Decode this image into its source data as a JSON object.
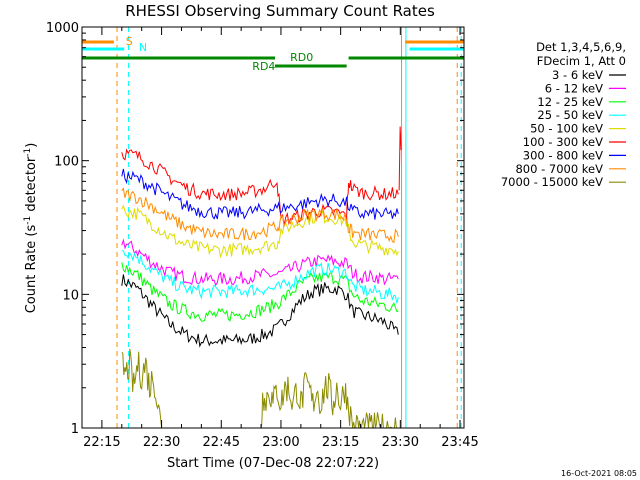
{
  "chart_data": {
    "type": "line",
    "title": "RHESSI Observing Summary Count Rates",
    "xlabel": "Start Time (07-Dec-08 22:07:22)",
    "ylabel_main": "Count Rate (s",
    "ylabel_sup1": "-1",
    "ylabel_mid": " detector",
    "ylabel_sup2": "-1",
    "ylabel_end": ")",
    "yscale": "log",
    "xlim": [
      10.0,
      106.0
    ],
    "ylim": [
      1,
      1000
    ],
    "x_ticks": [
      {
        "value": 15,
        "label": "22:15"
      },
      {
        "value": 30,
        "label": "22:30"
      },
      {
        "value": 45,
        "label": "22:45"
      },
      {
        "value": 60,
        "label": "23:00"
      },
      {
        "value": 75,
        "label": "23:15"
      },
      {
        "value": 90,
        "label": "23:30"
      },
      {
        "value": 105,
        "label": "23:45"
      }
    ],
    "y_ticks": [
      {
        "value": 1,
        "label": "1"
      },
      {
        "value": 10,
        "label": "10"
      },
      {
        "value": 100,
        "label": "100"
      },
      {
        "value": 1000,
        "label": "1000"
      }
    ],
    "legend_header": [
      "Det 1,3,4,5,6,9,",
      "FDecim 1, Att 0"
    ],
    "series": [
      {
        "name": "3 - 6 keV",
        "color": "#000000",
        "x": [
          20,
          24,
          28,
          32,
          36,
          40,
          44,
          48,
          52,
          56,
          59,
          62,
          65,
          68,
          71,
          74,
          76.5,
          78,
          80,
          82,
          84,
          86,
          88,
          89.5
        ],
        "y": [
          13,
          11,
          8,
          6,
          5,
          4.5,
          4.5,
          4.5,
          4.6,
          5,
          5.5,
          7,
          9,
          10.5,
          11,
          11,
          10,
          7.5,
          7,
          6.8,
          6.5,
          6.2,
          5.5,
          5
        ]
      },
      {
        "name": "6 - 12 keV",
        "color": "#ff00ff",
        "x": [
          20,
          24,
          28,
          32,
          36,
          40,
          44,
          48,
          52,
          56,
          59,
          62,
          65,
          68,
          71,
          74,
          76.5,
          78,
          80,
          82,
          84,
          86,
          88,
          89.5
        ],
        "y": [
          25,
          21,
          17,
          14.5,
          13.5,
          13,
          13,
          13,
          13.5,
          14,
          14,
          15,
          16.5,
          17.5,
          18,
          17.5,
          17,
          14.5,
          13.5,
          13.5,
          13.5,
          13,
          13,
          13
        ]
      },
      {
        "name": "12 - 25 keV",
        "color": "#00ff00",
        "x": [
          20,
          24,
          28,
          32,
          36,
          40,
          44,
          48,
          52,
          56,
          59,
          62,
          65,
          68,
          71,
          74,
          76.5,
          78,
          80,
          82,
          84,
          86,
          88,
          89.5
        ],
        "y": [
          17,
          14,
          10.5,
          8.5,
          7.5,
          7,
          7,
          7,
          7.3,
          7.8,
          8.5,
          10,
          12,
          13,
          13.5,
          13.3,
          12.5,
          10,
          9,
          8.8,
          8.5,
          8.3,
          8,
          7.5
        ]
      },
      {
        "name": "25 - 50 keV",
        "color": "#00ffff",
        "x": [
          20,
          24,
          28,
          32,
          36,
          40,
          44,
          48,
          52,
          56,
          59,
          62,
          65,
          68,
          71,
          74,
          76.5,
          78,
          80,
          82,
          84,
          86,
          88,
          89.5
        ],
        "y": [
          22,
          19,
          15,
          12.5,
          11,
          10.5,
          10.5,
          10.5,
          10.8,
          11,
          11,
          12,
          13.5,
          15,
          15.5,
          15,
          14.5,
          11.5,
          11,
          10.5,
          10.5,
          10,
          10,
          9.5
        ]
      },
      {
        "name": "50 - 100 keV",
        "color": "#dddd00",
        "x": [
          20,
          24,
          28,
          32,
          36,
          40,
          44,
          48,
          52,
          56,
          59,
          60,
          62,
          65,
          68,
          71,
          74,
          76.5,
          77,
          78,
          80,
          82,
          84,
          86,
          88,
          89.5
        ],
        "y": [
          43,
          40,
          33,
          27,
          23.5,
          22,
          21.5,
          21.5,
          22,
          23,
          24,
          30,
          32,
          35,
          37.5,
          38,
          37,
          35,
          30,
          25,
          23.5,
          23,
          22.5,
          22,
          22,
          21
        ]
      },
      {
        "name": "100 - 300 keV",
        "color": "#ff0000",
        "x": [
          20,
          24,
          28,
          32,
          36,
          40,
          44,
          48,
          52,
          56,
          59,
          60,
          62,
          65,
          68,
          71,
          74,
          76.5,
          77,
          78,
          80,
          82,
          84,
          86,
          88,
          89.5
        ],
        "y": [
          115,
          108,
          92,
          75,
          63,
          57,
          56,
          56,
          58,
          62,
          72,
          36,
          37,
          39,
          41.5,
          42,
          41,
          39,
          70,
          62,
          58,
          57,
          57,
          56,
          57,
          56
        ]
      },
      {
        "name": "300 - 800 keV",
        "color": "#0000ff",
        "x": [
          20,
          24,
          28,
          32,
          36,
          40,
          44,
          48,
          52,
          56,
          59,
          62,
          65,
          68,
          71,
          74,
          76.5,
          78,
          80,
          82,
          84,
          86,
          88,
          89.5
        ],
        "y": [
          78,
          73,
          63,
          53,
          46,
          42,
          40.5,
          40.5,
          41.5,
          43,
          44,
          45,
          47,
          49.5,
          51,
          50.5,
          48,
          42,
          40,
          40,
          40,
          39.5,
          39.5,
          40
        ]
      },
      {
        "name": "800 - 7000 keV",
        "color": "#ff8c00",
        "x": [
          20,
          24,
          28,
          32,
          36,
          40,
          44,
          48,
          52,
          56,
          59,
          60,
          62,
          65,
          68,
          71,
          74,
          76.5,
          77,
          78,
          80,
          82,
          84,
          86,
          88,
          89.5
        ],
        "y": [
          57,
          53,
          45,
          37,
          32,
          29,
          28,
          28,
          28.5,
          30,
          32,
          34,
          36,
          38,
          40,
          40.5,
          39.5,
          37,
          31,
          29,
          28,
          28,
          27.5,
          27.5,
          27.5,
          27
        ]
      },
      {
        "name": "7000 - 15000 keV",
        "color": "#8b8b00",
        "x": [
          20,
          21,
          22,
          23,
          24,
          25,
          26,
          27,
          28,
          29,
          30,
          55,
          55.5,
          56,
          57,
          58,
          59,
          60,
          61,
          62,
          63,
          64,
          65,
          66,
          67,
          68,
          69,
          70,
          71,
          72,
          73,
          74,
          75,
          76,
          77,
          78,
          79,
          80,
          81,
          82,
          83,
          84,
          85,
          86,
          87,
          88,
          89
        ],
        "y": [
          3,
          2.5,
          3,
          2,
          3,
          2.5,
          3,
          2,
          2.5,
          1.5,
          1,
          1,
          2,
          1.5,
          2,
          1.5,
          2,
          1.5,
          2,
          2,
          1.5,
          2,
          1.5,
          2,
          2,
          1.5,
          2,
          1.5,
          2,
          2,
          1.5,
          2,
          1.5,
          2,
          1.5,
          1,
          1,
          1,
          1,
          1,
          1,
          1,
          1,
          1,
          1,
          1,
          1
        ]
      }
    ],
    "attenuator_bars": [
      {
        "label": "S",
        "color": "#ff8c00"
      },
      {
        "label": "N",
        "color": "#00ffff"
      }
    ],
    "rd_labels": [
      {
        "label": "RD0",
        "color": "#008800"
      },
      {
        "label": "RD4",
        "color": "#008800"
      }
    ],
    "vertical_markers": [
      {
        "x": 18.8,
        "color": "#ff8c00",
        "style": "dashed"
      },
      {
        "x": 21.7,
        "color": "#00ffff",
        "style": "dashed"
      },
      {
        "x": 90.3,
        "color": "#ff8c00",
        "style": "solid"
      },
      {
        "x": 91.4,
        "color": "#00ffff",
        "style": "solid"
      },
      {
        "x": 104.3,
        "color": "#ff8c00",
        "style": "dashed"
      },
      {
        "x": 105.3,
        "color": "#00ffff",
        "style": "dashed"
      }
    ]
  },
  "timestamp": "16-Oct-2021 08:05"
}
